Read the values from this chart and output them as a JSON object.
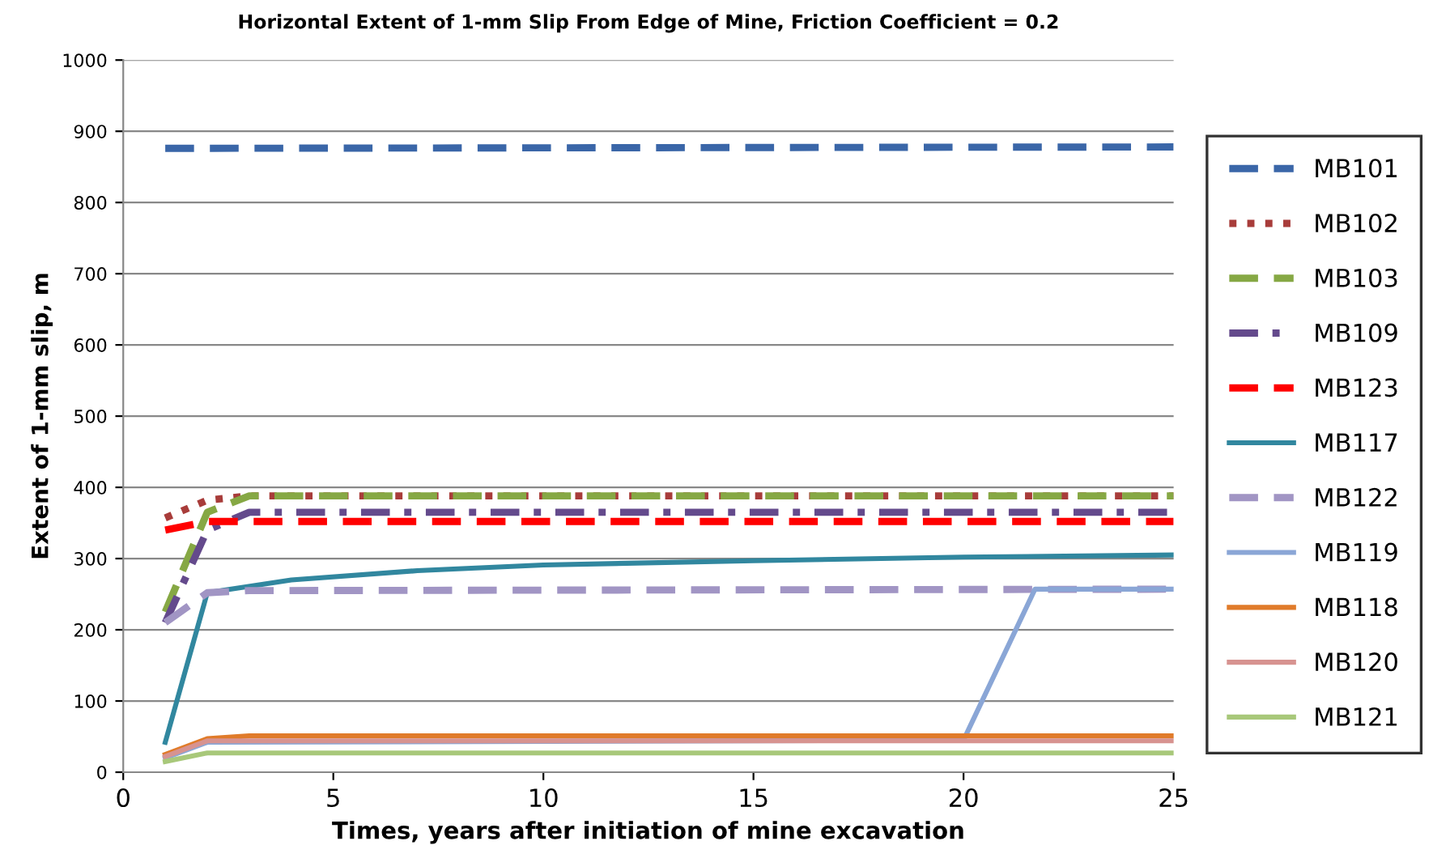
{
  "chart_data": {
    "type": "line",
    "title": "Horizontal Extent of 1-mm Slip From Edge of Mine, Friction Coefficient = 0.2",
    "xlabel": "Times, years after initiation of mine excavation",
    "ylabel": "Extent of 1-mm slip, m",
    "xlim": [
      0,
      25
    ],
    "xticks": [
      0,
      5,
      10,
      15,
      20,
      25
    ],
    "ylim": [
      0,
      1000
    ],
    "yticks": [
      0,
      100,
      200,
      300,
      400,
      500,
      600,
      700,
      800,
      900,
      1000
    ],
    "grid": "y",
    "legend": "right",
    "marker": "none",
    "series": [
      {
        "name": "MB101",
        "color": "#3a66a8",
        "line_style": "dashed",
        "x": [
          1,
          25
        ],
        "values": [
          876,
          878
        ]
      },
      {
        "name": "MB102",
        "color": "#a83c3a",
        "line_style": "dotted",
        "x": [
          1,
          2,
          3,
          25
        ],
        "values": [
          357,
          382,
          388,
          388
        ]
      },
      {
        "name": "MB103",
        "color": "#86a844",
        "line_style": "dashed",
        "x": [
          1,
          2,
          3,
          25
        ],
        "values": [
          225,
          365,
          388,
          388
        ]
      },
      {
        "name": "MB109",
        "color": "#644a8c",
        "line_style": "dashdot",
        "x": [
          1,
          2,
          3,
          25
        ],
        "values": [
          210,
          340,
          365,
          365
        ]
      },
      {
        "name": "MB123",
        "color": "#ff0000",
        "line_style": "dashed",
        "x": [
          1,
          2,
          25
        ],
        "values": [
          340,
          352,
          352
        ]
      },
      {
        "name": "MB117",
        "color": "#31879f",
        "line_style": "solid",
        "x": [
          1,
          2,
          4,
          7,
          10,
          15,
          20,
          25
        ],
        "values": [
          42,
          252,
          270,
          283,
          291,
          297,
          302,
          305
        ]
      },
      {
        "name": "MB122",
        "color": "#a195c4",
        "line_style": "dashed",
        "x": [
          1,
          2,
          3,
          25
        ],
        "values": [
          210,
          252,
          255,
          257
        ]
      },
      {
        "name": "MB119",
        "color": "#8aa6d6",
        "line_style": "solid",
        "x": [
          1,
          2,
          20,
          21.7,
          25
        ],
        "values": [
          20,
          42,
          45,
          257,
          257
        ]
      },
      {
        "name": "MB118",
        "color": "#e07b2a",
        "line_style": "solid",
        "x": [
          1,
          2,
          3,
          25
        ],
        "values": [
          25,
          47,
          51,
          51
        ]
      },
      {
        "name": "MB120",
        "color": "#d79390",
        "line_style": "solid",
        "x": [
          1,
          2,
          25
        ],
        "values": [
          22,
          44,
          44
        ]
      },
      {
        "name": "MB121",
        "color": "#a8c87a",
        "line_style": "solid",
        "x": [
          1,
          2,
          25
        ],
        "values": [
          15,
          27,
          27
        ]
      }
    ]
  }
}
